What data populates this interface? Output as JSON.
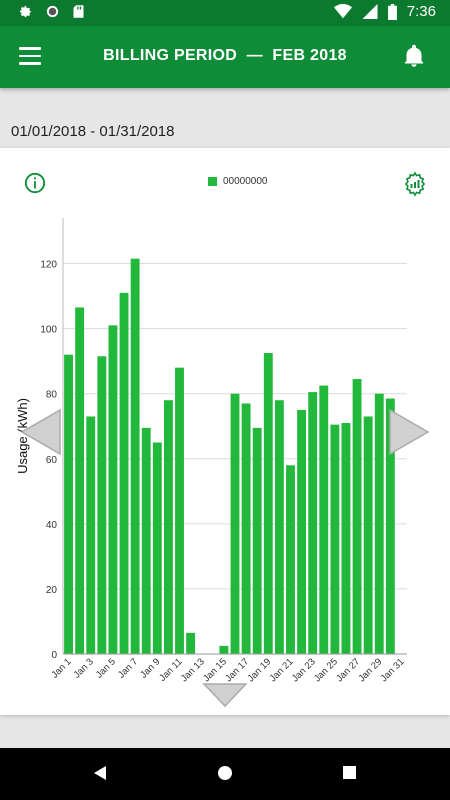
{
  "status_bar": {
    "time": "7:36",
    "icons": [
      "gear-icon",
      "circle-icon",
      "sd-card-icon",
      "wifi-icon",
      "signal-icon",
      "battery-icon"
    ]
  },
  "app_bar": {
    "title": "BILLING PERIOD  —  FEB 2018",
    "icons": [
      "menu-icon",
      "bell-icon"
    ]
  },
  "period_range": "01/01/2018 - 01/31/2018",
  "colors": {
    "primary": "#0e8c38",
    "status": "#0c7a2e",
    "bar": "#22b83b"
  },
  "chart_data": {
    "type": "bar",
    "legend": [
      "00000000"
    ],
    "legend_position": "top-center",
    "ylabel": "Usage (kWh)",
    "xlabel": "",
    "ylim": [
      0,
      134
    ],
    "yticks": [
      0,
      20,
      40,
      60,
      80,
      100,
      120
    ],
    "grid": true,
    "categories": [
      "Jan 1",
      "Jan 2",
      "Jan 3",
      "Jan 4",
      "Jan 5",
      "Jan 6",
      "Jan 7",
      "Jan 8",
      "Jan 9",
      "Jan 10",
      "Jan 11",
      "Jan 12",
      "Jan 13",
      "Jan 14",
      "Jan 15",
      "Jan 16",
      "Jan 17",
      "Jan 18",
      "Jan 19",
      "Jan 20",
      "Jan 21",
      "Jan 22",
      "Jan 23",
      "Jan 24",
      "Jan 25",
      "Jan 26",
      "Jan 27",
      "Jan 28",
      "Jan 29",
      "Jan 30",
      "Jan 31"
    ],
    "xtick_labels": [
      "Jan 1",
      "",
      "Jan 3",
      "",
      "Jan 5",
      "",
      "Jan 7",
      "",
      "Jan 9",
      "",
      "Jan 11",
      "",
      "Jan 13",
      "",
      "Jan 15",
      "",
      "Jan 17",
      "",
      "Jan 19",
      "",
      "Jan 21",
      "",
      "Jan 23",
      "",
      "Jan 25",
      "",
      "Jan 27",
      "",
      "Jan 29",
      "",
      "Jan 31"
    ],
    "series": [
      {
        "name": "00000000",
        "values": [
          92,
          106.5,
          73,
          91.5,
          101,
          111,
          121.5,
          69.5,
          65,
          78,
          88,
          6.5,
          0,
          0,
          2.5,
          80,
          77,
          69.5,
          92.5,
          78,
          58,
          75,
          80.5,
          82.5,
          70.5,
          71,
          84.5,
          73,
          80,
          78.5,
          0
        ]
      }
    ]
  }
}
